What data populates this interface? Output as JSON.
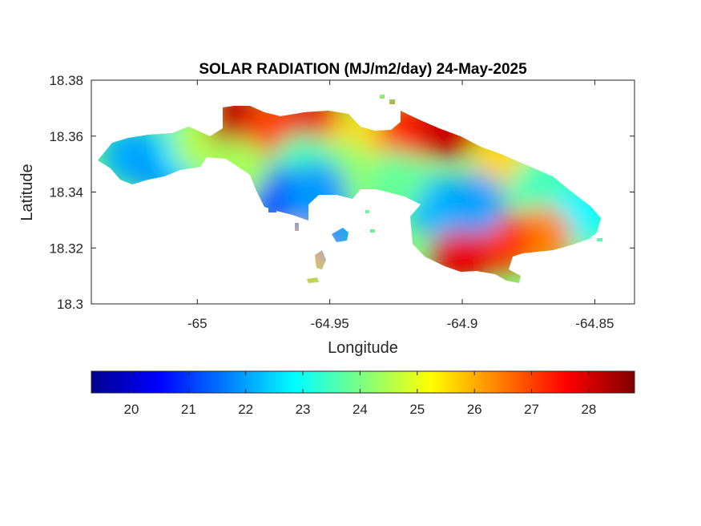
{
  "chart_data": {
    "type": "heatmap",
    "title": "SOLAR RADIATION (MJ/m2/day) 24-May-2025",
    "xlabel": "Longitude",
    "ylabel": "Latitude",
    "xlim": [
      -65.04,
      -64.835
    ],
    "ylim": [
      18.3,
      18.38
    ],
    "xticks": [
      -65,
      -64.95,
      -64.9,
      -64.85
    ],
    "xtick_labels": [
      "-65",
      "-64.95",
      "-64.9",
      "-64.85"
    ],
    "yticks": [
      18.3,
      18.32,
      18.34,
      18.36,
      18.38
    ],
    "ytick_labels": [
      "18.3",
      "18.32",
      "18.34",
      "18.36",
      "18.38"
    ],
    "colorbar": {
      "colormap": "jet",
      "range": [
        19.3,
        28.8
      ],
      "ticks": [
        20,
        21,
        22,
        23,
        24,
        25,
        26,
        27,
        28
      ],
      "tick_labels": [
        "20",
        "21",
        "22",
        "23",
        "24",
        "25",
        "26",
        "27",
        "28"
      ],
      "placement": "bottom"
    },
    "grid": false,
    "regions": [
      {
        "lon": -65.025,
        "lat": 18.353,
        "value": 22.1
      },
      {
        "lon": -65.012,
        "lat": 18.349,
        "value": 21.8
      },
      {
        "lon": -65.005,
        "lat": 18.355,
        "value": 22.6
      },
      {
        "lon": -64.998,
        "lat": 18.358,
        "value": 24.5
      },
      {
        "lon": -64.985,
        "lat": 18.366,
        "value": 28.2
      },
      {
        "lon": -64.97,
        "lat": 18.364,
        "value": 27.0
      },
      {
        "lon": -64.955,
        "lat": 18.364,
        "value": 27.8
      },
      {
        "lon": -64.94,
        "lat": 18.358,
        "value": 25.6
      },
      {
        "lon": -64.92,
        "lat": 18.362,
        "value": 27.3
      },
      {
        "lon": -64.905,
        "lat": 18.363,
        "value": 28.1
      },
      {
        "lon": -64.885,
        "lat": 18.352,
        "value": 25.6
      },
      {
        "lon": -64.87,
        "lat": 18.342,
        "value": 23.5
      },
      {
        "lon": -64.855,
        "lat": 18.332,
        "value": 22.8
      },
      {
        "lon": -64.87,
        "lat": 18.324,
        "value": 26.4
      },
      {
        "lon": -64.885,
        "lat": 18.322,
        "value": 27.1
      },
      {
        "lon": -64.9,
        "lat": 18.318,
        "value": 27.8
      },
      {
        "lon": -64.91,
        "lat": 18.335,
        "value": 22.2
      },
      {
        "lon": -64.895,
        "lat": 18.336,
        "value": 22.0
      },
      {
        "lon": -64.925,
        "lat": 18.344,
        "value": 23.8
      },
      {
        "lon": -64.945,
        "lat": 18.348,
        "value": 24.2
      },
      {
        "lon": -64.96,
        "lat": 18.35,
        "value": 23.6
      },
      {
        "lon": -64.97,
        "lat": 18.338,
        "value": 21.3
      },
      {
        "lon": -64.955,
        "lat": 18.34,
        "value": 21.9
      },
      {
        "lon": -64.985,
        "lat": 18.348,
        "value": 24.4
      },
      {
        "lon": -64.95,
        "lat": 18.325,
        "value": 21.9
      },
      {
        "lon": -64.963,
        "lat": 18.316,
        "value": 26.0
      }
    ]
  }
}
